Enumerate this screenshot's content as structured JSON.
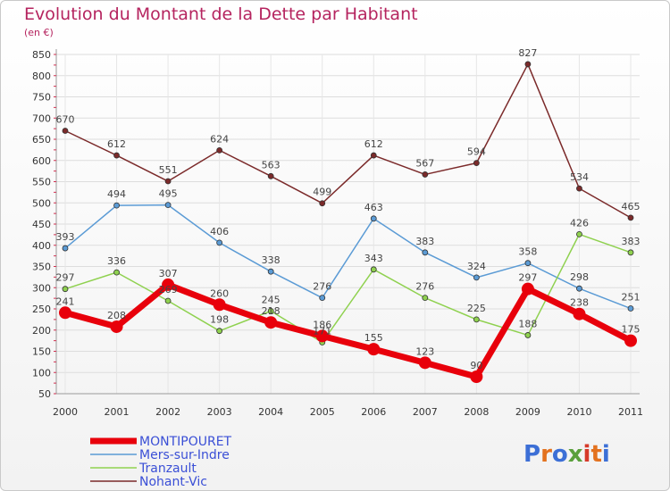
{
  "chart_data": {
    "type": "line",
    "title": "Evolution du Montant de la Dette par Habitant",
    "subtitle": "(en €)",
    "x": [
      "2000",
      "2001",
      "2002",
      "2003",
      "2004",
      "2005",
      "2006",
      "2007",
      "2008",
      "2009",
      "2010",
      "2011"
    ],
    "ylim": [
      50,
      850
    ],
    "yticks": [
      50,
      100,
      150,
      200,
      250,
      300,
      350,
      400,
      450,
      500,
      550,
      600,
      650,
      700,
      750,
      800,
      850
    ],
    "grid": true,
    "legend_position": "bottom-left",
    "series": [
      {
        "name": "MONTIPOURET",
        "color": "#e8000b",
        "values": [
          241,
          208,
          307,
          260,
          218,
          186,
          155,
          123,
          90,
          297,
          238,
          175
        ]
      },
      {
        "name": "Mers-sur-Indre",
        "color": "#5b9bd5",
        "values": [
          393,
          494,
          495,
          406,
          338,
          276,
          463,
          383,
          324,
          358,
          298,
          251
        ]
      },
      {
        "name": "Tranzault",
        "color": "#8fd14f",
        "values": [
          297,
          336,
          269,
          198,
          245,
          171,
          343,
          276,
          225,
          188,
          426,
          383
        ]
      },
      {
        "name": "Nohant-Vic",
        "color": "#7b2a2a",
        "values": [
          670,
          612,
          551,
          624,
          563,
          499,
          612,
          567,
          594,
          827,
          534,
          465
        ]
      }
    ]
  },
  "logo": {
    "text": "Proxiti"
  }
}
